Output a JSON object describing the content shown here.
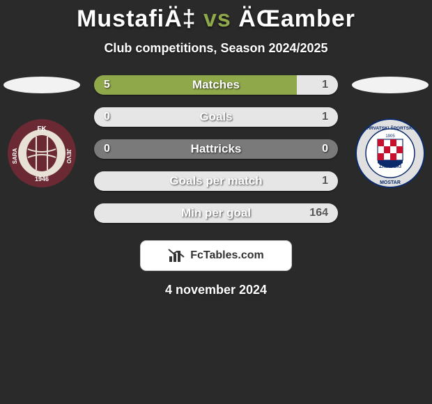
{
  "title": {
    "player1": "MustafiÄ‡",
    "vs": "vs",
    "player2": "ÄŒamber",
    "player1_color": "#ffffff",
    "vs_color": "#8fa84a",
    "player2_color": "#ffffff",
    "fontsize": 34
  },
  "subtitle": "Club competitions, Season 2024/2025",
  "background_color": "#2a2a2a",
  "left_accent": "#8fa84a",
  "right_accent": "#e6e6e6",
  "row_track_color": "#7a7a7a",
  "ellipse_left_color": "#f2f2f2",
  "ellipse_right_color": "#f2f2f2",
  "crest_left": {
    "ring": "#6b2a33",
    "ring_text_color": "#ffffff",
    "inner_bg": "#e8e1d6",
    "ball_color": "#6b2a33"
  },
  "crest_right": {
    "ring": "#e0e0e0",
    "ring_text_color": "#0a2a6b",
    "inner_bg": "#ffffff",
    "red": "#c8102e",
    "blue": "#0a2a6b"
  },
  "rows": [
    {
      "label": "Matches",
      "left": "5",
      "right": "1",
      "left_pct": 83,
      "right_pct": 17
    },
    {
      "label": "Goals",
      "left": "0",
      "right": "1",
      "left_pct": 0,
      "right_pct": 100
    },
    {
      "label": "Hattricks",
      "left": "0",
      "right": "0",
      "left_pct": 0,
      "right_pct": 0
    },
    {
      "label": "Goals per match",
      "left": "",
      "right": "1",
      "left_pct": 0,
      "right_pct": 100
    },
    {
      "label": "Min per goal",
      "left": "",
      "right": "164",
      "left_pct": 0,
      "right_pct": 100
    }
  ],
  "attribution": {
    "text": "FcTables.com",
    "icon_color": "#333333",
    "bg": "#ffffff"
  },
  "date": "4 november 2024"
}
